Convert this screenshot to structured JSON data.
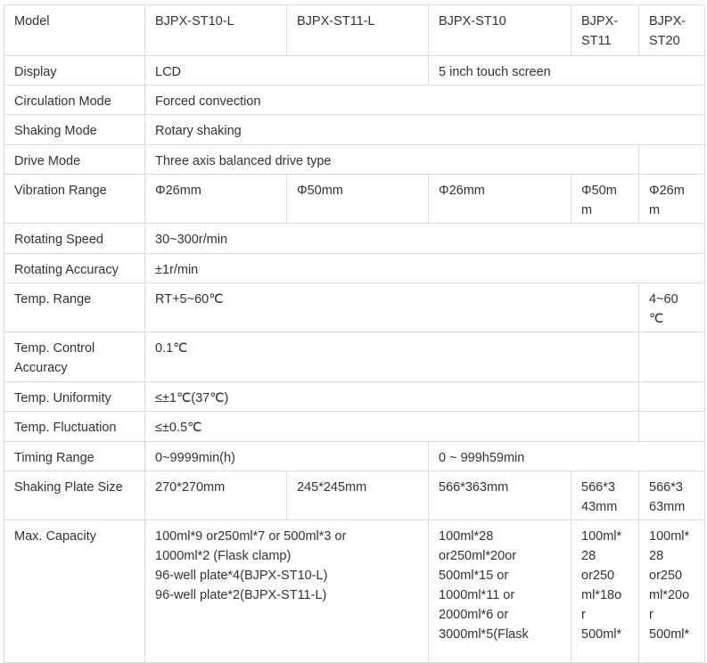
{
  "rows": [
    {
      "label": "Model",
      "cells": [
        "BJPX-ST10-L",
        "BJPX-ST11-L",
        "BJPX-ST10",
        "BJPX-\nST11",
        "BJPX-\nST20"
      ]
    },
    {
      "label": "Display",
      "cells": [
        "LCD",
        "5 inch touch screen"
      ]
    },
    {
      "label": "Circulation Mode",
      "cells": [
        "Forced convection"
      ]
    },
    {
      "label": "Shaking Mode",
      "cells": [
        "Rotary shaking"
      ]
    },
    {
      "label": "Drive Mode",
      "cells": [
        "Three axis balanced drive type",
        ""
      ]
    },
    {
      "label": "Vibration Range",
      "cells": [
        "Φ26mm",
        "Φ50mm",
        "Φ26mm",
        "Φ50m\nm",
        "Φ26m\nm"
      ]
    },
    {
      "label": "Rotating Speed",
      "cells": [
        "30~300r/min"
      ]
    },
    {
      "label": "Rotating Accuracy",
      "cells": [
        "±1r/min"
      ]
    },
    {
      "label": "Temp. Range",
      "cells": [
        "RT+5~60℃",
        "4~60\n℃"
      ]
    },
    {
      "label": "Temp. Control\nAccuracy",
      "cells": [
        "0.1℃",
        ""
      ]
    },
    {
      "label": "Temp. Uniformity",
      "cells": [
        "≤±1℃(37℃)",
        ""
      ]
    },
    {
      "label": "Temp. Fluctuation",
      "cells": [
        "≤±0.5℃",
        ""
      ]
    },
    {
      "label": "Timing Range",
      "cells": [
        "0~9999min(h)",
        "0 ~ 999h59min"
      ]
    },
    {
      "label": "Shaking Plate Size",
      "cells": [
        "270*270mm",
        "245*245mm",
        "566*363mm",
        "566*3\n43mm",
        "566*3\n63mm"
      ]
    },
    {
      "label": "Max. Capacity",
      "cells": [
        "100ml*9 or250ml*7 or 500ml*3 or\n1000ml*2 (Flask clamp)\n96-well plate*4(BJPX-ST10-L)\n96-well plate*2(BJPX-ST11-L)",
        "100ml*28\nor250ml*20or\n500ml*15 or\n1000ml*11 or\n2000ml*6 or\n3000ml*5(Flask",
        "100ml*\n28\nor250\nml*18o\nr\n500ml*",
        "100ml*\n28\nor250\nml*20o\nr\n500ml*"
      ]
    }
  ]
}
